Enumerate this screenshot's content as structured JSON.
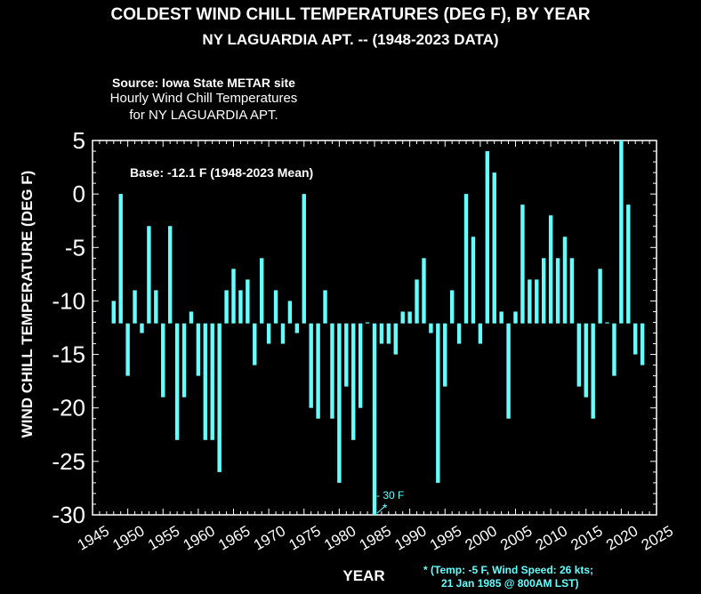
{
  "chart_data": {
    "type": "bar",
    "title": "COLDEST WIND CHILL TEMPERATURES (DEG F), BY YEAR",
    "subtitle": "NY LAGUARDIA APT. -- (1948-2023 DATA)",
    "source_lines": [
      "Source: Iowa State METAR site",
      "Hourly Wind Chill Temperatures",
      "for NY LAGUARDIA APT."
    ],
    "base_label": "Base: -12.1 F (1948-2023 Mean)",
    "base": -12.1,
    "xlabel": "YEAR",
    "ylabel": "WIND CHILL TEMPERATURE (DEG F)",
    "xlim": [
      1945,
      2025
    ],
    "ylim": [
      -30,
      5
    ],
    "xticks": [
      "1945",
      "1950",
      "1955",
      "1960",
      "1965",
      "1970",
      "1975",
      "1980",
      "1985",
      "1990",
      "1995",
      "2000",
      "2005",
      "2010",
      "2015",
      "2020",
      "2025"
    ],
    "yticks": [
      "5",
      "0",
      "-5",
      "-10",
      "-15",
      "-20",
      "-25",
      "-30"
    ],
    "bar_color": "#66ffff",
    "annotation_value": "- 30 F",
    "annotation_mark": "*",
    "footnote_lines": [
      "* (Temp: -5 F, Wind Speed: 26 kts;",
      "21 Jan 1985 @ 800AM LST)"
    ],
    "years": [
      1948,
      1949,
      1950,
      1951,
      1952,
      1953,
      1954,
      1955,
      1956,
      1957,
      1958,
      1959,
      1960,
      1961,
      1962,
      1963,
      1964,
      1965,
      1966,
      1967,
      1968,
      1969,
      1970,
      1971,
      1972,
      1973,
      1974,
      1975,
      1976,
      1977,
      1978,
      1979,
      1980,
      1981,
      1982,
      1983,
      1984,
      1985,
      1986,
      1987,
      1988,
      1989,
      1990,
      1991,
      1992,
      1993,
      1994,
      1995,
      1996,
      1997,
      1998,
      1999,
      2000,
      2001,
      2002,
      2003,
      2004,
      2005,
      2006,
      2007,
      2008,
      2009,
      2010,
      2011,
      2012,
      2013,
      2014,
      2015,
      2016,
      2017,
      2018,
      2019,
      2020,
      2021,
      2022,
      2023
    ],
    "values": [
      -10,
      0,
      -17,
      -9,
      -13,
      -3,
      -9,
      -19,
      -3,
      -23,
      -19,
      -11,
      -17,
      -23,
      -23,
      -26,
      -9,
      -7,
      -9,
      -8,
      -16,
      -6,
      -14,
      -9,
      -14,
      -10,
      -13,
      0,
      -20,
      -21,
      -9,
      -21,
      -27,
      -18,
      -23,
      -20,
      -12,
      -30,
      -14,
      -14,
      -15,
      -11,
      -11,
      -8,
      -6,
      -13,
      -27,
      -18,
      -9,
      -14,
      0,
      -4,
      -14,
      4,
      2,
      -11,
      -21,
      -11,
      -1,
      -8,
      -8,
      -6,
      -2,
      -6,
      -4,
      -6,
      -18,
      -19,
      -21,
      -7,
      -12,
      -17,
      5,
      -1,
      -15,
      -16
    ]
  }
}
